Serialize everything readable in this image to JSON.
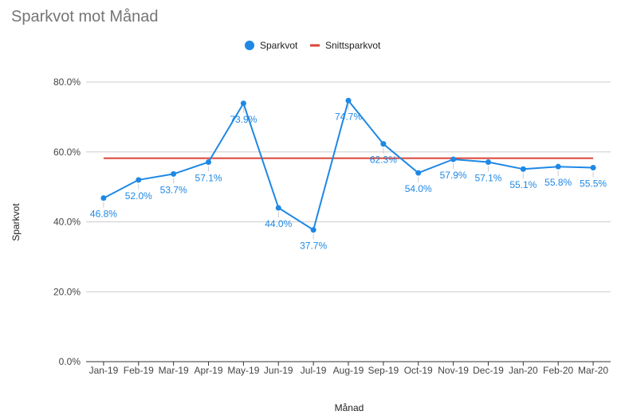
{
  "chart_data": {
    "type": "line",
    "title": "Sparkvot mot Månad",
    "xlabel": "Månad",
    "ylabel": "Sparkvot",
    "categories": [
      "Jan-19",
      "Feb-19",
      "Mar-19",
      "Apr-19",
      "May-19",
      "Jun-19",
      "Jul-19",
      "Aug-19",
      "Sep-19",
      "Oct-19",
      "Nov-19",
      "Dec-19",
      "Jan-20",
      "Feb-20",
      "Mar-20"
    ],
    "series": [
      {
        "name": "Sparkvot",
        "values": [
          46.8,
          52.0,
          53.7,
          57.1,
          73.9,
          44.0,
          37.7,
          74.7,
          62.3,
          54.0,
          57.9,
          57.1,
          55.1,
          55.8,
          55.5
        ],
        "labels": [
          "46.8%",
          "52.0%",
          "53.7%",
          "57.1%",
          "73.9%",
          "44.0%",
          "37.7%",
          "74.7%",
          "62.3%",
          "54.0%",
          "57.9%",
          "57.1%",
          "55.1%",
          "55.8%",
          "55.5%"
        ],
        "color": "#1e88e5"
      },
      {
        "name": "Snittsparkvot",
        "values": [
          58.2,
          58.2,
          58.2,
          58.2,
          58.2,
          58.2,
          58.2,
          58.2,
          58.2,
          58.2,
          58.2,
          58.2,
          58.2,
          58.2,
          58.2
        ],
        "color": "#db4437"
      }
    ],
    "yticks": [
      0,
      20,
      40,
      60,
      80
    ],
    "ytick_labels": [
      "0.0%",
      "20.0%",
      "40.0%",
      "60.0%",
      "80.0%"
    ],
    "ylim": [
      0,
      80
    ],
    "grid": true,
    "legend": "top"
  }
}
